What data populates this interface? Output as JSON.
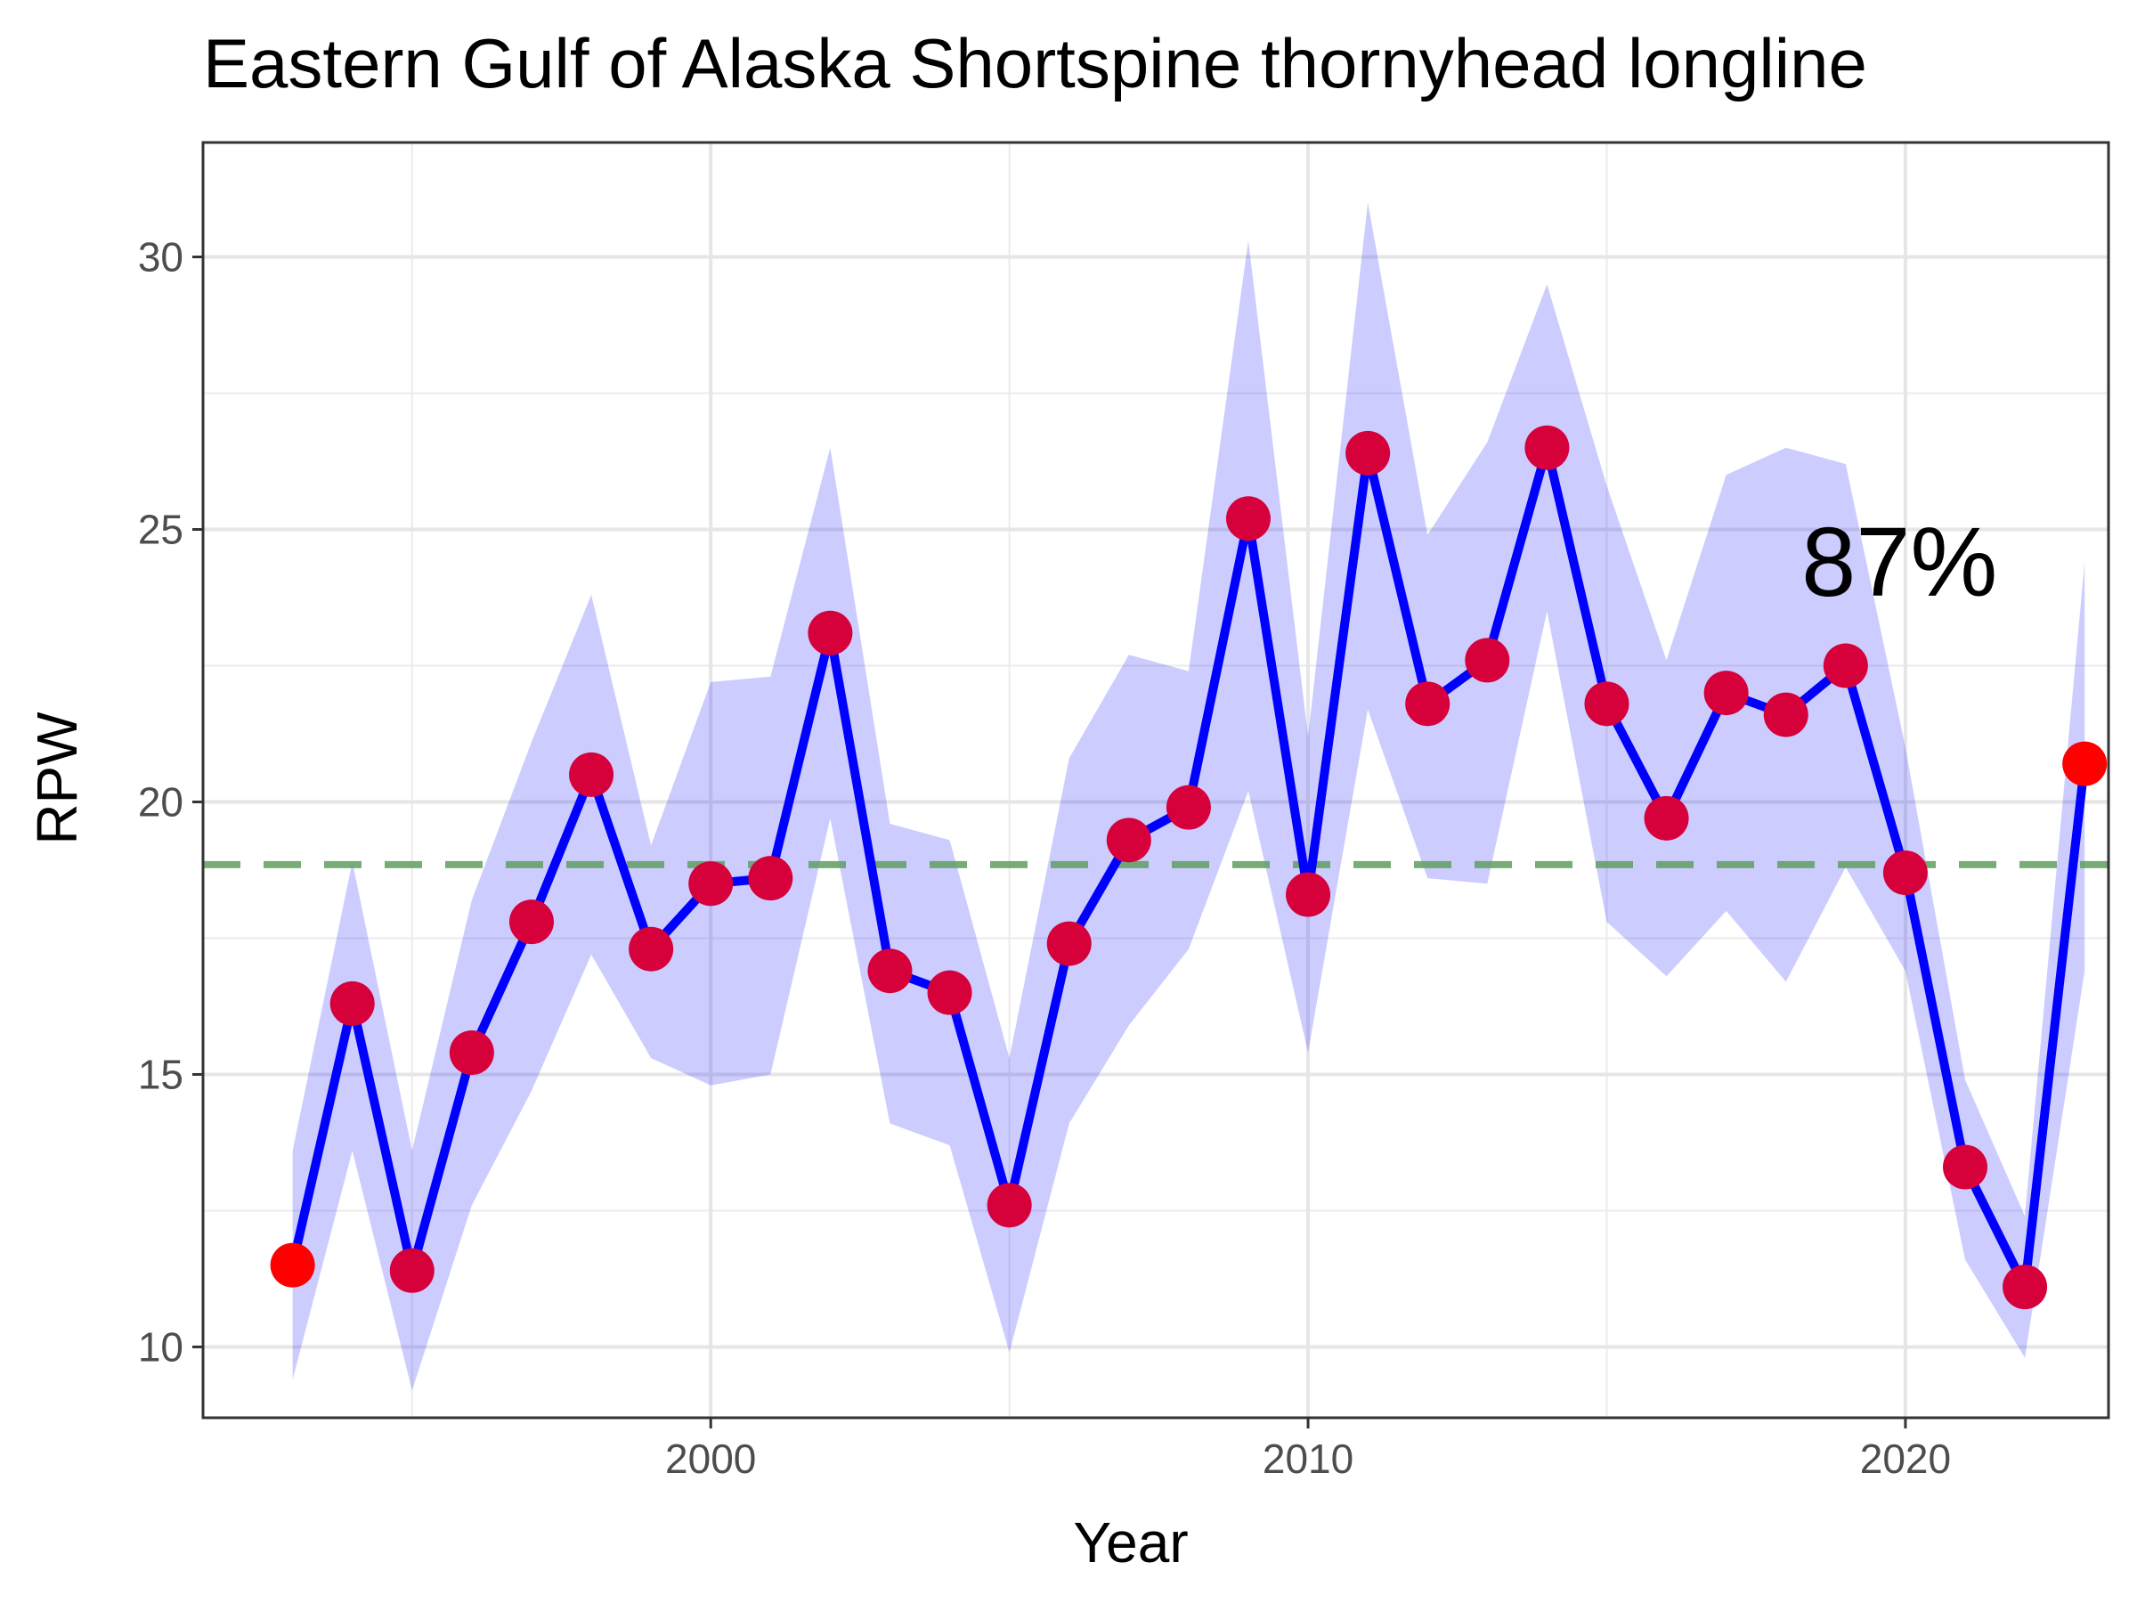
{
  "chart_data": {
    "type": "line",
    "title": "Eastern Gulf of Alaska Shortspine thornyhead longline",
    "xlabel": "Year",
    "ylabel": "RPW",
    "xlim": [
      1991.5,
      2023.4
    ],
    "ylim": [
      8.7,
      32.1
    ],
    "x_ticks": [
      2000,
      2010,
      2020
    ],
    "x_tick_labels": [
      "2000",
      "2010",
      "2020"
    ],
    "y_ticks": [
      10,
      15,
      20,
      25,
      30
    ],
    "y_tick_labels": [
      "10",
      "15",
      "20",
      "25",
      "30"
    ],
    "grid": true,
    "legend": "none",
    "reference_line": {
      "y": 18.85,
      "style": "dashed",
      "color": "#5f9e5f"
    },
    "annotation": {
      "text": "87%",
      "x": 2019.9,
      "y": 24.4
    },
    "colors": {
      "line": "#0000ff",
      "band": "#0000ff",
      "points": "#ff0000",
      "point_overlap": "#d6003a"
    },
    "series": [
      {
        "x": [
          1993,
          1994,
          1995,
          1996,
          1997,
          1998,
          1999,
          2000,
          2001,
          2002,
          2003,
          2004,
          2005,
          2006,
          2007,
          2008,
          2009,
          2010,
          2011,
          2012,
          2013,
          2014,
          2015,
          2016,
          2017,
          2018,
          2019,
          2020,
          2021,
          2022,
          2023
        ],
        "y": [
          11.5,
          16.3,
          11.4,
          15.4,
          17.8,
          20.5,
          17.3,
          18.5,
          18.6,
          23.1,
          16.9,
          16.5,
          12.6,
          17.4,
          19.3,
          19.9,
          25.2,
          18.3,
          26.4,
          21.8,
          22.6,
          26.5,
          21.8,
          19.7,
          22.0,
          21.6,
          22.5,
          18.7,
          13.3,
          11.1,
          20.7
        ],
        "lower": [
          9.4,
          13.6,
          9.2,
          12.6,
          14.7,
          17.2,
          15.3,
          14.8,
          15.0,
          19.7,
          14.1,
          13.7,
          9.9,
          14.1,
          15.9,
          17.3,
          20.2,
          15.4,
          21.7,
          18.6,
          18.5,
          23.5,
          17.8,
          16.8,
          18.0,
          16.7,
          18.8,
          16.9,
          11.6,
          9.8,
          16.9
        ],
        "upper": [
          13.6,
          18.9,
          13.6,
          18.2,
          21.1,
          23.8,
          19.2,
          22.2,
          22.3,
          26.5,
          19.6,
          19.3,
          15.3,
          20.8,
          22.7,
          22.4,
          30.3,
          21.2,
          31.0,
          24.9,
          26.6,
          29.5,
          25.8,
          22.6,
          26.0,
          26.5,
          26.2,
          21.0,
          14.9,
          12.4,
          24.4
        ]
      }
    ]
  }
}
